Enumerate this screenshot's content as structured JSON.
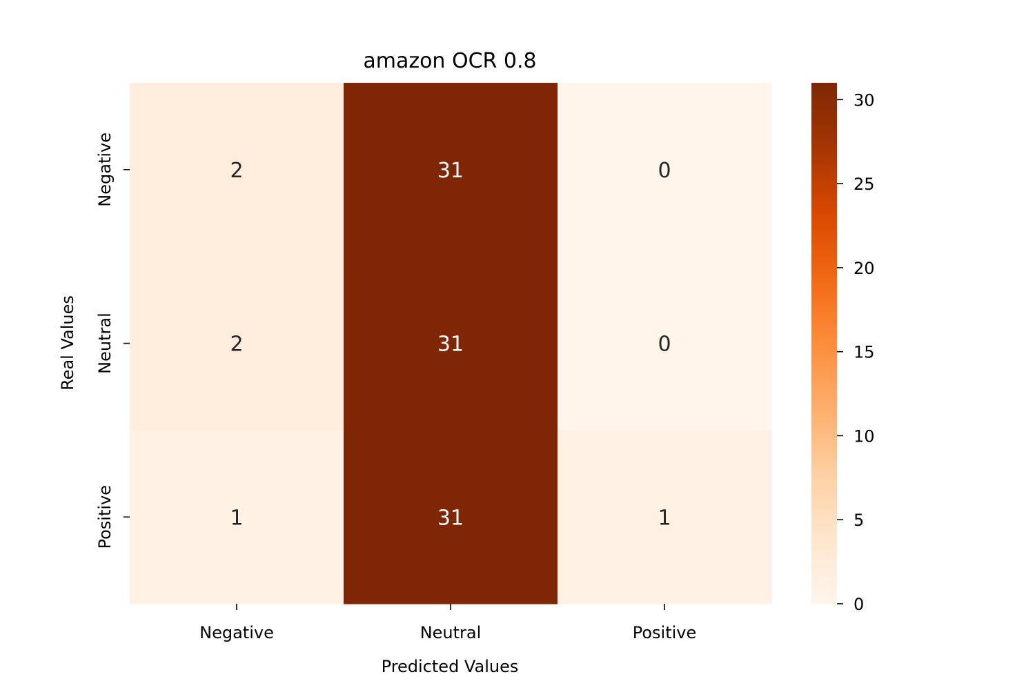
{
  "chart_data": {
    "type": "heatmap",
    "title": "amazon OCR 0.8",
    "xlabel": "Predicted Values",
    "ylabel": "Real Values",
    "x_categories": [
      "Negative",
      "Neutral",
      "Positive"
    ],
    "y_categories": [
      "Negative",
      "Neutral",
      "Positive"
    ],
    "values": [
      [
        2,
        31,
        0
      ],
      [
        2,
        31,
        0
      ],
      [
        1,
        31,
        1
      ]
    ],
    "colorbar": {
      "range": [
        0,
        31
      ],
      "ticks": [
        0,
        5,
        10,
        15,
        20,
        25,
        30
      ],
      "colormap": "Oranges"
    },
    "colormap_stops": [
      "#fff5eb",
      "#fee6ce",
      "#fdd0a2",
      "#fdae6b",
      "#fd8d3c",
      "#f16913",
      "#d94801",
      "#a63603",
      "#7f2704"
    ],
    "annotation_colors": {
      "light_cell": "#262626",
      "dark_cell": "#ffffff"
    }
  }
}
